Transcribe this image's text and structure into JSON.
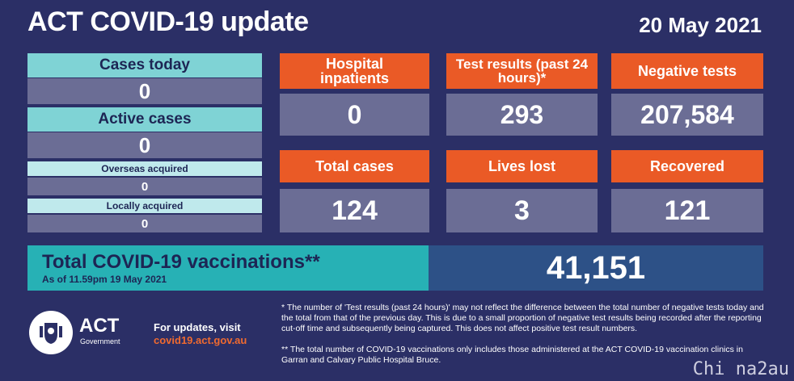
{
  "header": {
    "title": "ACT COVID-19 update",
    "date": "20 May 2021"
  },
  "left_panel": {
    "cases_today": {
      "label": "Cases today",
      "value": "0"
    },
    "active_cases": {
      "label": "Active cases",
      "value": "0"
    },
    "overseas_acquired": {
      "label": "Overseas acquired",
      "value": "0"
    },
    "locally_acquired": {
      "label": "Locally acquired",
      "value": "0"
    }
  },
  "tiles": {
    "hospital": {
      "label": "Hospital inpatients",
      "value": "0"
    },
    "tests": {
      "label": "Test results (past 24 hours)*",
      "value": "293"
    },
    "negative": {
      "label": "Negative tests",
      "value": "207,584"
    },
    "total": {
      "label": "Total cases",
      "value": "124"
    },
    "lives": {
      "label": "Lives lost",
      "value": "3"
    },
    "recovered": {
      "label": "Recovered",
      "value": "121"
    }
  },
  "vaccinations": {
    "title": "Total COVID-19 vaccinations**",
    "subtitle": "As of 11.59pm 19 May 2021",
    "value": "41,151"
  },
  "footer": {
    "logo_text": "ACT",
    "logo_sub": "Government",
    "updates_label": "For updates, visit",
    "updates_url": "covid19.act.gov.au",
    "note1": "* The number of 'Test results (past 24 hours)' may not reflect the difference between the total number of negative tests today and the total from that of the previous day. This is due to a small proportion of negative test results being recorded after the reporting cut-off time and subsequently being captured. This does not affect positive test result numbers.",
    "note2": "** The total number of COVID-19 vaccinations only includes those administered at the ACT COVID-19 vaccination clinics in Garran and Calvary Public Hospital Bruce."
  },
  "watermark": "Chi na2au",
  "colors": {
    "background": "#2b2f66",
    "orange": "#ea5a26",
    "teal": "#7fd3d5",
    "grey": "#6b6d95",
    "vacc_teal": "#27b1b5",
    "vacc_blue": "#2d5187"
  },
  "icons": [
    "act-crest-icon"
  ]
}
